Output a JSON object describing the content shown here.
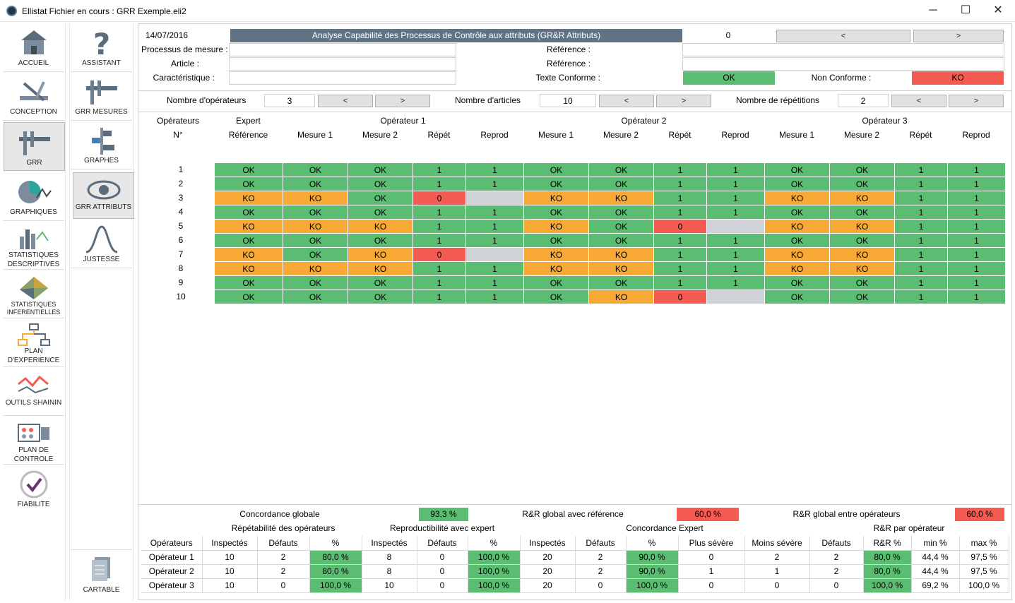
{
  "window": {
    "title": "Ellistat Fichier en cours : GRR Exemple.eli2",
    "min": "─",
    "max": "☐",
    "close": "✕"
  },
  "sidebar": {
    "items": [
      {
        "label": "ACCUEIL",
        "icon": "house-icon"
      },
      {
        "label": "CONCEPTION",
        "icon": "caliper-design-icon"
      },
      {
        "label": "GRR",
        "icon": "caliper-icon"
      },
      {
        "label": "GRAPHIQUES",
        "icon": "pie-chart-icon"
      },
      {
        "label": "STATISTIQUES DESCRIPTIVES",
        "icon": "bar-chart-icon"
      },
      {
        "label": "STATISTIQUES INFERENTIELLES",
        "icon": "3d-surface-icon"
      },
      {
        "label": "PLAN D'EXPERIENCE",
        "icon": "tree-icon"
      },
      {
        "label": "OUTILS SHAININ",
        "icon": "line-chart-icon"
      },
      {
        "label": "PLAN DE CONTROLE",
        "icon": "control-plan-icon"
      },
      {
        "label": "FIABILITE",
        "icon": "checkmark-icon"
      }
    ]
  },
  "subnav": {
    "items": [
      {
        "label": "ASSISTANT",
        "icon": "question-icon"
      },
      {
        "label": "GRR MESURES",
        "icon": "caliper-icon"
      },
      {
        "label": "GRAPHES",
        "icon": "graph-icon"
      },
      {
        "label": "GRR ATTRIBUTS",
        "icon": "eye-icon"
      },
      {
        "label": "JUSTESSE",
        "icon": "bell-curve-icon"
      }
    ],
    "bottom": {
      "label": "CARTABLE",
      "icon": "document-icon"
    }
  },
  "header": {
    "date": "14/07/2016",
    "title": "Analyse Capabilité des Processus de Contrôle aux attributs (GR&R Attributs)",
    "index": "0",
    "prev": "<",
    "next": ">",
    "processus_label": "Processus de mesure :",
    "article_label": "Article :",
    "caracteristique_label": "Caractéristique :",
    "reference_label1": "Référence :",
    "reference_label2": "Référence :",
    "texte_conforme_label": "Texte Conforme :",
    "ok_value": "OK",
    "non_conforme_label": "Non Conforme :",
    "ko_value": "KO"
  },
  "params": {
    "operateurs_label": "Nombre d'opérateurs",
    "operateurs": "3",
    "articles_label": "Nombre d'articles",
    "articles": "10",
    "repetitions_label": "Nombre de répétitions",
    "repetitions": "2",
    "prev": "<",
    "next": ">"
  },
  "grid": {
    "operateurs_label": "Opérateurs",
    "num_label": "N°",
    "expert_label": "Expert",
    "reference_label": "Référence",
    "op_labels": [
      "Opérateur 1",
      "Opérateur 2",
      "Opérateur 3"
    ],
    "sub_cols": [
      "Mesure 1",
      "Mesure 2",
      "Répét",
      "Reprod"
    ],
    "rows": [
      {
        "n": "1",
        "cells": [
          [
            "OK",
            "ok"
          ],
          [
            "OK",
            "ok"
          ],
          [
            "OK",
            "ok"
          ],
          [
            "1",
            "ok"
          ],
          [
            "1",
            "ok"
          ],
          [
            "OK",
            "ok"
          ],
          [
            "OK",
            "ok"
          ],
          [
            "1",
            "ok"
          ],
          [
            "1",
            "ok"
          ],
          [
            "OK",
            "ok"
          ],
          [
            "OK",
            "ok"
          ],
          [
            "1",
            "ok"
          ],
          [
            "1",
            "ok"
          ]
        ]
      },
      {
        "n": "2",
        "cells": [
          [
            "OK",
            "ok"
          ],
          [
            "OK",
            "ok"
          ],
          [
            "OK",
            "ok"
          ],
          [
            "1",
            "ok"
          ],
          [
            "1",
            "ok"
          ],
          [
            "OK",
            "ok"
          ],
          [
            "OK",
            "ok"
          ],
          [
            "1",
            "ok"
          ],
          [
            "1",
            "ok"
          ],
          [
            "OK",
            "ok"
          ],
          [
            "OK",
            "ok"
          ],
          [
            "1",
            "ok"
          ],
          [
            "1",
            "ok"
          ]
        ]
      },
      {
        "n": "3",
        "cells": [
          [
            "KO",
            "ko"
          ],
          [
            "KO",
            "ko"
          ],
          [
            "OK",
            "ok"
          ],
          [
            "0",
            "red"
          ],
          [
            "",
            "gray"
          ],
          [
            "KO",
            "ko"
          ],
          [
            "KO",
            "ko"
          ],
          [
            "1",
            "ok"
          ],
          [
            "1",
            "ok"
          ],
          [
            "KO",
            "ko"
          ],
          [
            "KO",
            "ko"
          ],
          [
            "1",
            "ok"
          ],
          [
            "1",
            "ok"
          ]
        ]
      },
      {
        "n": "4",
        "cells": [
          [
            "OK",
            "ok"
          ],
          [
            "OK",
            "ok"
          ],
          [
            "OK",
            "ok"
          ],
          [
            "1",
            "ok"
          ],
          [
            "1",
            "ok"
          ],
          [
            "OK",
            "ok"
          ],
          [
            "OK",
            "ok"
          ],
          [
            "1",
            "ok"
          ],
          [
            "1",
            "ok"
          ],
          [
            "OK",
            "ok"
          ],
          [
            "OK",
            "ok"
          ],
          [
            "1",
            "ok"
          ],
          [
            "1",
            "ok"
          ]
        ]
      },
      {
        "n": "5",
        "cells": [
          [
            "KO",
            "ko"
          ],
          [
            "KO",
            "ko"
          ],
          [
            "KO",
            "ko"
          ],
          [
            "1",
            "ok"
          ],
          [
            "1",
            "ok"
          ],
          [
            "KO",
            "ko"
          ],
          [
            "OK",
            "ok"
          ],
          [
            "0",
            "red"
          ],
          [
            "",
            "gray"
          ],
          [
            "KO",
            "ko"
          ],
          [
            "KO",
            "ko"
          ],
          [
            "1",
            "ok"
          ],
          [
            "1",
            "ok"
          ]
        ]
      },
      {
        "n": "6",
        "cells": [
          [
            "OK",
            "ok"
          ],
          [
            "OK",
            "ok"
          ],
          [
            "OK",
            "ok"
          ],
          [
            "1",
            "ok"
          ],
          [
            "1",
            "ok"
          ],
          [
            "OK",
            "ok"
          ],
          [
            "OK",
            "ok"
          ],
          [
            "1",
            "ok"
          ],
          [
            "1",
            "ok"
          ],
          [
            "OK",
            "ok"
          ],
          [
            "OK",
            "ok"
          ],
          [
            "1",
            "ok"
          ],
          [
            "1",
            "ok"
          ]
        ]
      },
      {
        "n": "7",
        "cells": [
          [
            "KO",
            "ko"
          ],
          [
            "OK",
            "ok"
          ],
          [
            "KO",
            "ko"
          ],
          [
            "0",
            "red"
          ],
          [
            "",
            "gray"
          ],
          [
            "KO",
            "ko"
          ],
          [
            "KO",
            "ko"
          ],
          [
            "1",
            "ok"
          ],
          [
            "1",
            "ok"
          ],
          [
            "KO",
            "ko"
          ],
          [
            "KO",
            "ko"
          ],
          [
            "1",
            "ok"
          ],
          [
            "1",
            "ok"
          ]
        ]
      },
      {
        "n": "8",
        "cells": [
          [
            "KO",
            "ko"
          ],
          [
            "KO",
            "ko"
          ],
          [
            "KO",
            "ko"
          ],
          [
            "1",
            "ok"
          ],
          [
            "1",
            "ok"
          ],
          [
            "KO",
            "ko"
          ],
          [
            "KO",
            "ko"
          ],
          [
            "1",
            "ok"
          ],
          [
            "1",
            "ok"
          ],
          [
            "KO",
            "ko"
          ],
          [
            "KO",
            "ko"
          ],
          [
            "1",
            "ok"
          ],
          [
            "1",
            "ok"
          ]
        ]
      },
      {
        "n": "9",
        "cells": [
          [
            "OK",
            "ok"
          ],
          [
            "OK",
            "ok"
          ],
          [
            "OK",
            "ok"
          ],
          [
            "1",
            "ok"
          ],
          [
            "1",
            "ok"
          ],
          [
            "OK",
            "ok"
          ],
          [
            "OK",
            "ok"
          ],
          [
            "1",
            "ok"
          ],
          [
            "1",
            "ok"
          ],
          [
            "OK",
            "ok"
          ],
          [
            "OK",
            "ok"
          ],
          [
            "1",
            "ok"
          ],
          [
            "1",
            "ok"
          ]
        ]
      },
      {
        "n": "10",
        "cells": [
          [
            "OK",
            "ok"
          ],
          [
            "OK",
            "ok"
          ],
          [
            "OK",
            "ok"
          ],
          [
            "1",
            "ok"
          ],
          [
            "1",
            "ok"
          ],
          [
            "OK",
            "ok"
          ],
          [
            "KO",
            "ko"
          ],
          [
            "0",
            "red"
          ],
          [
            "",
            "gray"
          ],
          [
            "OK",
            "ok"
          ],
          [
            "OK",
            "ok"
          ],
          [
            "1",
            "ok"
          ],
          [
            "1",
            "ok"
          ]
        ]
      }
    ]
  },
  "summary": {
    "concordance_globale_label": "Concordance globale",
    "concordance_globale": "93,3 %",
    "rr_ref_label": "R&R global avec référence",
    "rr_ref": "60,0 %",
    "rr_ops_label": "R&R global entre opérateurs",
    "rr_ops": "60,0 %",
    "sections": [
      "Répétabilité des opérateurs",
      "Reproductibilité avec expert",
      "Concordance Expert",
      "R&R par opérateur"
    ],
    "cols": [
      "Opérateurs",
      "Inspectés",
      "Défauts",
      "%",
      "Inspectés",
      "Défauts",
      "%",
      "Inspectés",
      "Défauts",
      "%",
      "Plus sévère",
      "Moins sévère",
      "Défauts",
      "R&R %",
      "min %",
      "max %"
    ],
    "rows": [
      [
        "Opérateur 1",
        "10",
        "2",
        "80,0 %",
        "8",
        "0",
        "100,0 %",
        "20",
        "2",
        "90,0 %",
        "0",
        "2",
        "2",
        "80,0 %",
        "44,4 %",
        "97,5 %"
      ],
      [
        "Opérateur 2",
        "10",
        "2",
        "80,0 %",
        "8",
        "0",
        "100,0 %",
        "20",
        "2",
        "90,0 %",
        "1",
        "1",
        "2",
        "80,0 %",
        "44,4 %",
        "97,5 %"
      ],
      [
        "Opérateur 3",
        "10",
        "0",
        "100,0 %",
        "10",
        "0",
        "100,0 %",
        "20",
        "0",
        "100,0 %",
        "0",
        "0",
        "0",
        "100,0 %",
        "69,2 %",
        "100,0 %"
      ]
    ]
  },
  "colors": {
    "ok": "#5bbd72",
    "ko": "#f8a834",
    "red": "#f45b53",
    "gray": "#cfd2d6",
    "header": "#5f7385"
  }
}
